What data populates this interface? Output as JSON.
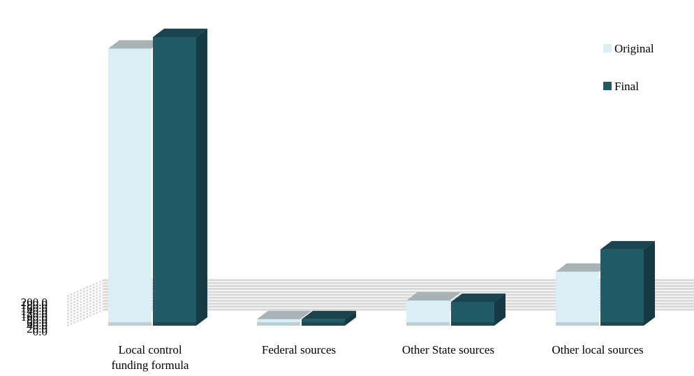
{
  "chart_data": {
    "type": "bar",
    "categories": [
      "Local control funding formula",
      "Federal sources",
      "Other State sources",
      "Other local sources"
    ],
    "category_lines": [
      [
        "Local control",
        "funding formula"
      ],
      [
        "Federal sources"
      ],
      [
        "Other State sources"
      ],
      [
        "Other local sources"
      ]
    ],
    "series": [
      {
        "name": "Original",
        "values": [
          192.5,
          4.5,
          17.5,
          37.5
        ],
        "color": "#daeef5",
        "top_color": "#a7b3b4",
        "side_color": "#a3b6bc"
      },
      {
        "name": "Final",
        "values": [
          200.5,
          4.5,
          16.5,
          53.0
        ],
        "color": "#225a66",
        "top_color": "#1a4450",
        "side_color": "#163a43"
      }
    ],
    "ylim": [
      0,
      200
    ],
    "yticks": [
      0,
      20,
      40,
      60,
      80,
      100,
      120,
      140,
      160,
      180,
      200
    ],
    "ytick_labels": [
      "0.0",
      "20.0",
      "40.0",
      "60.0",
      "80.0",
      "100.0",
      "120.0",
      "140.0",
      "160.0",
      "180.0",
      "200.0"
    ],
    "title": "",
    "xlabel": "",
    "ylabel": "",
    "grid": true,
    "legend_position": "right",
    "gridline_color": "#d9d9d9"
  }
}
